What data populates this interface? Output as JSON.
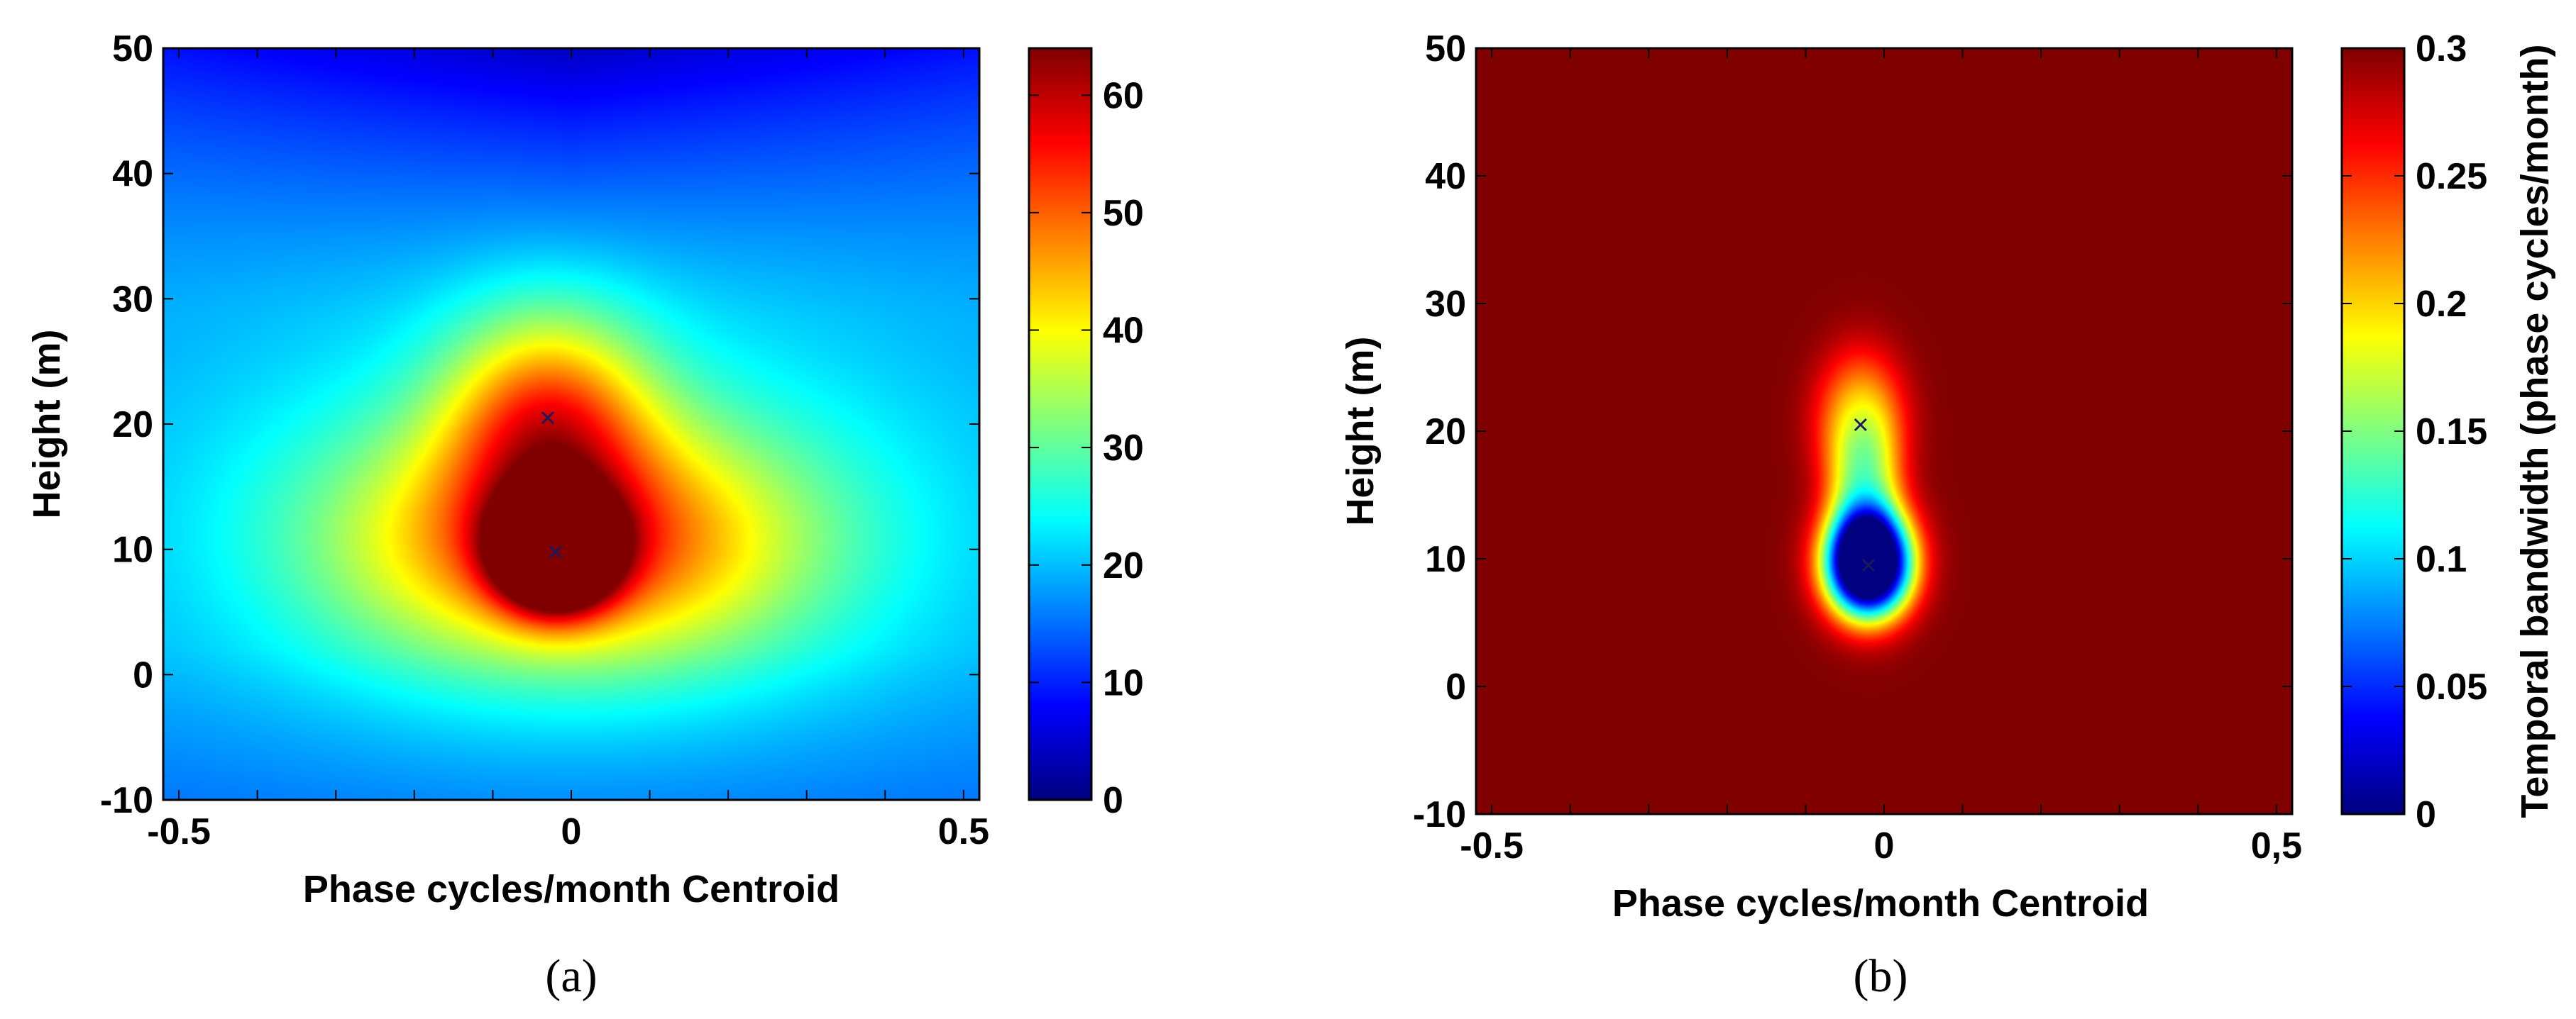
{
  "chart_data": [
    {
      "type": "heatmap",
      "caption": "(a)",
      "title": "",
      "xlabel": "Phase cycles/month Centroid",
      "ylabel": "Height (m)",
      "colorbar_label": "",
      "xlim": [
        -0.52,
        0.52
      ],
      "ylim": [
        -10,
        50
      ],
      "clim": [
        0,
        64
      ],
      "xticks": [
        -0.5,
        0,
        0.5
      ],
      "xtick_labels": [
        "-0.5",
        "0",
        "0.5"
      ],
      "yticks": [
        -10,
        0,
        10,
        20,
        30,
        40,
        50
      ],
      "ytick_labels": [
        "-10",
        "0",
        "10",
        "20",
        "30",
        "40",
        "50"
      ],
      "cticks": [
        0,
        10,
        20,
        30,
        40,
        50,
        60
      ],
      "ctick_labels": [
        "0",
        "10",
        "20",
        "30",
        "40",
        "50",
        "60"
      ],
      "colormap": "jet",
      "markers": [
        {
          "x": -0.03,
          "y": 20.5,
          "symbol": "x"
        },
        {
          "x": -0.02,
          "y": 9.8,
          "symbol": "x"
        }
      ],
      "field": {
        "background": 18,
        "top_value": 4,
        "features": [
          {
            "x": -0.02,
            "y": 9.8,
            "peak": 64,
            "sx": 0.05,
            "sy": 3.0
          },
          {
            "x": 0.0,
            "y": 10.5,
            "peak": 27,
            "sx": 0.2,
            "sy": 6.5
          },
          {
            "x": -0.03,
            "y": 20.5,
            "peak": 25,
            "sx": 0.09,
            "sy": 6.0
          },
          {
            "x": 0.0,
            "y": 12.0,
            "peak": 10,
            "sx": 0.33,
            "sy": 12.0
          }
        ]
      }
    },
    {
      "type": "heatmap",
      "caption": "(b)",
      "title": "",
      "xlabel": "Phase cycles/month Centroid",
      "ylabel": "Height (m)",
      "colorbar_label": "Temporal bandwidth (phase cycles/month)",
      "xlim": [
        -0.52,
        0.52
      ],
      "ylim": [
        -10,
        50
      ],
      "clim": [
        0,
        0.3
      ],
      "xticks": [
        -0.5,
        0,
        0.5
      ],
      "xtick_labels": [
        "-0.5",
        "0",
        "0,5"
      ],
      "yticks": [
        -10,
        0,
        10,
        20,
        30,
        40,
        50
      ],
      "ytick_labels": [
        "-10",
        "0",
        "10",
        "20",
        "30",
        "40",
        "50"
      ],
      "cticks": [
        0,
        0.05,
        0.1,
        0.15,
        0.2,
        0.25,
        0.3
      ],
      "ctick_labels": [
        "0",
        "0.05",
        "0.1",
        "0.15",
        "0.2",
        "0.25",
        "0.3"
      ],
      "colormap": "jet",
      "markers": [
        {
          "x": -0.03,
          "y": 20.5,
          "symbol": "x"
        },
        {
          "x": -0.02,
          "y": 9.5,
          "symbol": "x"
        }
      ],
      "field": {
        "background": 0.3,
        "dips": [
          {
            "x": -0.02,
            "y": 9.5,
            "depth": 0.26,
            "sx": 0.04,
            "sy": 3.0
          },
          {
            "x": -0.02,
            "y": 10.0,
            "depth": 0.13,
            "sx": 0.05,
            "sy": 4.0
          },
          {
            "x": -0.03,
            "y": 20.5,
            "depth": 0.09,
            "sx": 0.045,
            "sy": 4.5
          },
          {
            "x": -0.025,
            "y": 15.0,
            "depth": 0.08,
            "sx": 0.035,
            "sy": 5.0
          }
        ]
      }
    }
  ]
}
